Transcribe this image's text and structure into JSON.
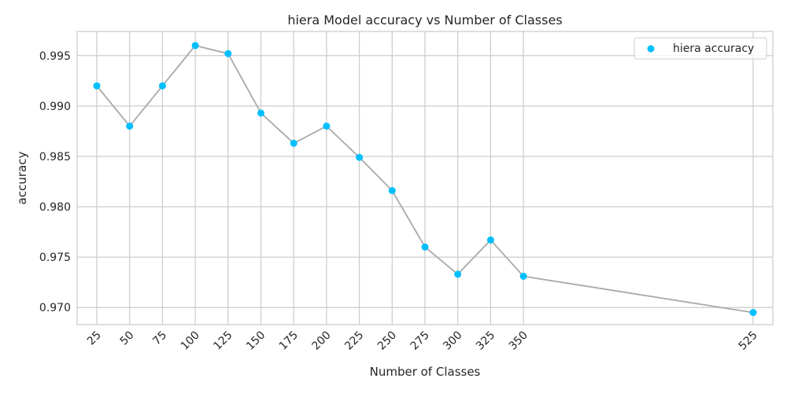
{
  "chart_data": {
    "type": "scatter",
    "title": "hiera Model accuracy vs Number of Classes",
    "xlabel": "Number of Classes",
    "ylabel": "accuracy",
    "xlim": [
      10,
      540
    ],
    "ylim": [
      0.9683,
      0.9974
    ],
    "xticks": [
      25,
      50,
      75,
      100,
      125,
      150,
      175,
      200,
      225,
      250,
      275,
      300,
      325,
      350,
      525
    ],
    "yticks": [
      0.97,
      0.975,
      0.98,
      0.985,
      0.99,
      0.995
    ],
    "ytick_labels": [
      "0.970",
      "0.975",
      "0.980",
      "0.985",
      "0.990",
      "0.995"
    ],
    "grid": true,
    "legend_position": "top-right",
    "series": [
      {
        "name": "hiera accuracy",
        "marker_color": "#00bfff",
        "line_color": "#a9a9a9",
        "x": [
          25,
          50,
          75,
          100,
          125,
          150,
          175,
          200,
          225,
          250,
          275,
          300,
          325,
          350,
          525
        ],
        "y": [
          0.992,
          0.988,
          0.992,
          0.996,
          0.9952,
          0.9893,
          0.9863,
          0.988,
          0.9849,
          0.9816,
          0.976,
          0.9733,
          0.9767,
          0.9731,
          0.9695
        ]
      }
    ]
  }
}
